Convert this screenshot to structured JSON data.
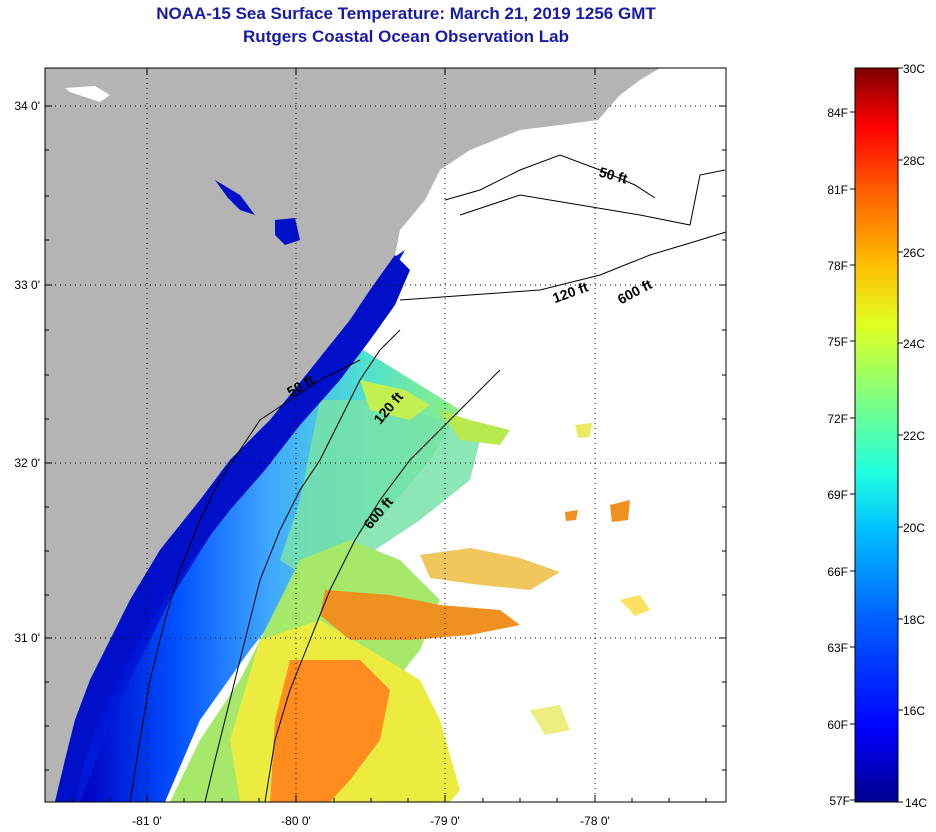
{
  "header": {
    "title": "NOAA-15 Sea Surface Temperature:  March 21, 2019 1256 GMT",
    "subtitle": "Rutgers Coastal Ocean Observation Lab"
  },
  "map": {
    "lat_labels": [
      "34 0'",
      "33 0'",
      "32 0'",
      "31 0'"
    ],
    "lon_labels": [
      "-81 0'",
      "-80 0'",
      "-79 0'",
      "-78 0'"
    ],
    "isobath_labels": [
      "50 ft",
      "120 ft",
      "600 ft",
      "50 ft",
      "120 ft",
      "600 ft"
    ]
  },
  "colorbar": {
    "celsius_labels": [
      "30C",
      "28C",
      "26C",
      "24C",
      "22C",
      "20C",
      "18C",
      "16C",
      "14C"
    ],
    "fahrenheit_labels": [
      "84F",
      "81F",
      "78F",
      "75F",
      "72F",
      "69F",
      "66F",
      "63F",
      "60F",
      "57F"
    ],
    "range_c": [
      14,
      30
    ],
    "colors": [
      "#00008f",
      "#0000ff",
      "#0060ff",
      "#00c0ff",
      "#20ffdf",
      "#80ff80",
      "#dfff20",
      "#ffc000",
      "#ff6000",
      "#ff0000",
      "#800000"
    ]
  },
  "colors": {
    "title": "#1a1aa8",
    "land": "#b4b4b4",
    "no_data": "#ffffff"
  }
}
